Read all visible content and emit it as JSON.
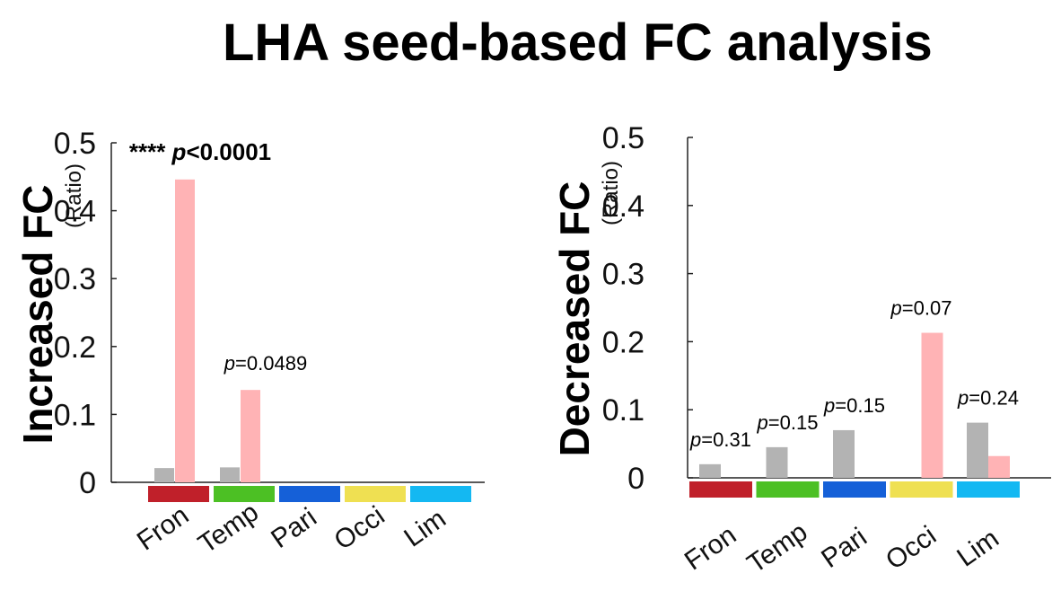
{
  "title": "LHA seed-based FC analysis",
  "chart_data": [
    {
      "type": "bar",
      "ylabel": "Increased FC",
      "ylabel_unit": "(Ratio)",
      "ylim": [
        0,
        0.5
      ],
      "yticks": [
        "0",
        "0.1",
        "0.2",
        "0.3",
        "0.4",
        "0.5"
      ],
      "categories": [
        "Fron",
        "Temp",
        "Pari",
        "Occi",
        "Lim"
      ],
      "category_colors": [
        "#c0202a",
        "#4cc024",
        "#1560d8",
        "#efe052",
        "#14b8f2"
      ],
      "series": [
        {
          "color": "#b3b3b3",
          "values": [
            0.021,
            0.022,
            0,
            0,
            0
          ]
        },
        {
          "color": "#ffb3b5",
          "values": [
            0.446,
            0.136,
            0,
            0,
            0
          ]
        }
      ],
      "annotations": [
        {
          "stars": "****",
          "p_label": "p",
          "text": "<0.0001",
          "category": 0,
          "bold": true
        },
        {
          "p_label": "p",
          "text": "=0.0489",
          "category": 1,
          "bold": false
        }
      ]
    },
    {
      "type": "bar",
      "ylabel": "Decreased FC",
      "ylabel_unit": "(Ratio)",
      "ylim": [
        0,
        0.5
      ],
      "yticks": [
        "0",
        "0.1",
        "0.2",
        "0.3",
        "0.4",
        "0.5"
      ],
      "categories": [
        "Fron",
        "Temp",
        "Pari",
        "Occi",
        "Lim"
      ],
      "category_colors": [
        "#c0202a",
        "#4cc024",
        "#1560d8",
        "#efe052",
        "#14b8f2"
      ],
      "series": [
        {
          "color": "#b3b3b3",
          "values": [
            0.02,
            0.045,
            0.07,
            0,
            0.081
          ]
        },
        {
          "color": "#ffb3b5",
          "values": [
            0,
            0,
            0,
            0.213,
            0.032
          ]
        }
      ],
      "annotations": [
        {
          "p_label": "p",
          "text": "=0.31",
          "category": 0
        },
        {
          "p_label": "p",
          "text": "=0.15",
          "category": 1
        },
        {
          "p_label": "p",
          "text": "=0.15",
          "category": 2
        },
        {
          "p_label": "p",
          "text": "=0.07",
          "category": 3
        },
        {
          "p_label": "p",
          "text": "=0.24",
          "category": 4
        }
      ]
    }
  ]
}
